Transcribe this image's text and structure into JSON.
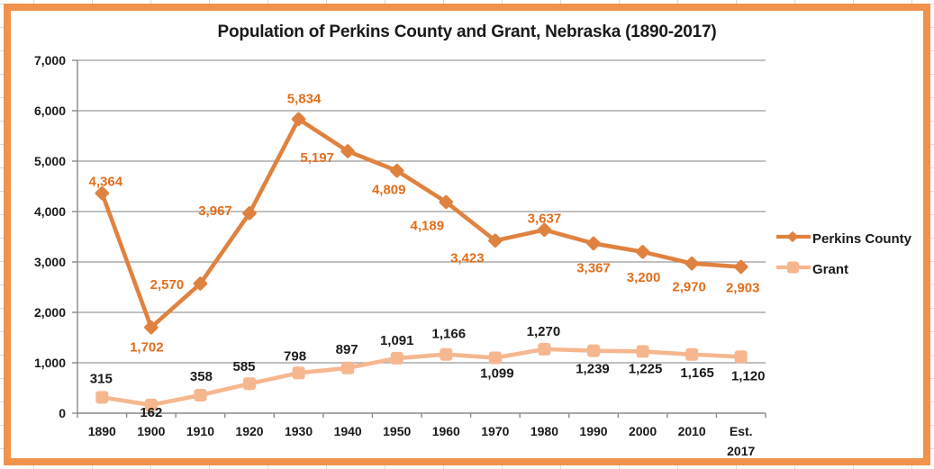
{
  "chart_data": {
    "type": "line",
    "title": "Population of Perkins County and Grant, Nebraska (1890-2017)",
    "categories": [
      "1890",
      "1900",
      "1910",
      "1920",
      "1930",
      "1940",
      "1950",
      "1960",
      "1970",
      "1980",
      "1990",
      "2000",
      "2010",
      "Est. 2017"
    ],
    "series": [
      {
        "name": "Perkins County",
        "marker": "diamond",
        "color": "#E0823F",
        "label_color": "#E26E1C",
        "values": [
          4364,
          1702,
          2570,
          3967,
          5834,
          5197,
          4809,
          4189,
          3423,
          3637,
          3367,
          3200,
          2970,
          2903
        ],
        "label_offsets": [
          [
            4,
            -8
          ],
          [
            -5,
            27
          ],
          [
            -37,
            6
          ],
          [
            -38,
            2
          ],
          [
            6,
            -18
          ],
          [
            -34,
            12
          ],
          [
            -9,
            26
          ],
          [
            -21,
            31
          ],
          [
            -31,
            24
          ],
          [
            0,
            -8
          ],
          [
            0,
            32
          ],
          [
            1,
            33
          ],
          [
            -3,
            31
          ],
          [
            2,
            28
          ]
        ]
      },
      {
        "name": "Grant",
        "marker": "square",
        "color": "#F6B78F",
        "label_color": "#1A1A1A",
        "values": [
          315,
          162,
          358,
          585,
          798,
          897,
          1091,
          1166,
          1099,
          1270,
          1239,
          1225,
          1165,
          1120
        ],
        "label_offsets": [
          [
            -1,
            -16
          ],
          [
            0,
            13
          ],
          [
            1,
            -16
          ],
          [
            -6,
            -14
          ],
          [
            -4,
            -14
          ],
          [
            -1,
            -16
          ],
          [
            0,
            -15
          ],
          [
            3,
            -18
          ],
          [
            2,
            22
          ],
          [
            -1,
            -15
          ],
          [
            -1,
            25
          ],
          [
            3,
            24
          ],
          [
            6,
            25
          ],
          [
            8,
            26
          ]
        ]
      }
    ],
    "ylim": [
      0,
      7000
    ],
    "ytick_step": 1000,
    "ytick_labels": [
      "0",
      "1,000",
      "2,000",
      "3,000",
      "4,000",
      "5,000",
      "6,000",
      "7,000"
    ],
    "xlabel": "",
    "ylabel": "",
    "grid": "horizontal",
    "legend_position": "right"
  },
  "styles": {
    "frame_border_color": "#F1934C",
    "cell_grid_color": "#D9D9D9",
    "gridline_color": "#9B9B9B",
    "axis_color": "#8A8A8A",
    "text_color": "#1A1A1A",
    "plot_background": "#FFFFFF"
  }
}
